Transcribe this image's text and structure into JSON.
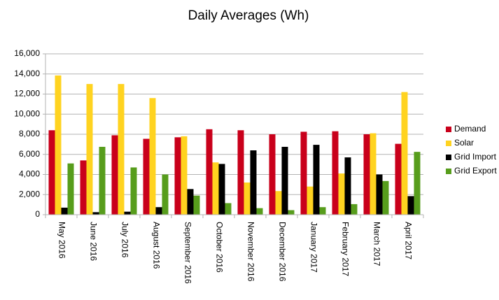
{
  "chart_data": {
    "type": "bar",
    "title": "Daily Averages (Wh)",
    "categories": [
      "May 2016",
      "June 2016",
      "July 2016",
      "August 2016",
      "September 2016",
      "October 2016",
      "November 2016",
      "December 2016",
      "January 2017",
      "February 2017",
      "March 2017",
      "April 2017"
    ],
    "series": [
      {
        "name": "Demand",
        "color": "#c9001b",
        "values": [
          8400,
          5400,
          7900,
          7550,
          7700,
          8500,
          8400,
          8000,
          8250,
          8300,
          8000,
          7050
        ]
      },
      {
        "name": "Solar",
        "color": "#ffd320",
        "values": [
          13850,
          13000,
          13000,
          11600,
          7800,
          5200,
          3200,
          2350,
          2800,
          4100,
          8100,
          12200
        ]
      },
      {
        "name": "Grid Import",
        "color": "#000000",
        "values": [
          700,
          250,
          300,
          750,
          2550,
          5050,
          6400,
          6750,
          6950,
          5700,
          4000,
          1850
        ]
      },
      {
        "name": "Grid Export",
        "color": "#579d1c",
        "values": [
          5100,
          6750,
          4700,
          4000,
          1900,
          1150,
          650,
          450,
          750,
          1050,
          3350,
          6250
        ]
      }
    ],
    "ylim": [
      0,
      16000
    ],
    "yticks": [
      0,
      {
        "value": 2000,
        "label": "2,000"
      },
      {
        "value": 4000,
        "label": "4,000"
      },
      {
        "value": 6000,
        "label": "6,000"
      },
      {
        "value": 8000,
        "label": "8,000"
      },
      {
        "value": 10000,
        "label": "10,000"
      },
      {
        "value": 12000,
        "label": "12,000"
      },
      {
        "value": 14000,
        "label": "14,000"
      },
      {
        "value": 16000,
        "label": "16,000"
      }
    ],
    "grid": true,
    "legend": "right"
  }
}
